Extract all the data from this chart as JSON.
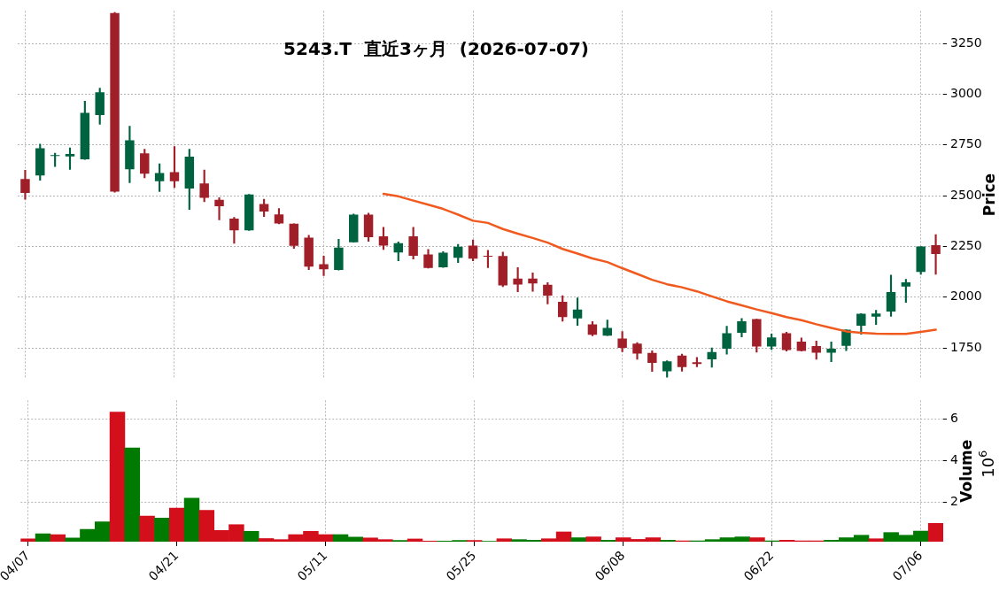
{
  "chart_data": [
    {
      "type": "candlestick",
      "title": "5243.T  直近3ヶ月  (2026-07-07)",
      "ylabel": "Price",
      "tick_labels": "y",
      "grid": true,
      "marker": "none",
      "categories": [
        null,
        null,
        null,
        null,
        null,
        null,
        null,
        null,
        null,
        null,
        null,
        null,
        null,
        null,
        null,
        null,
        null,
        null,
        null,
        null,
        null,
        null,
        null,
        null,
        null,
        null,
        null,
        null,
        null,
        null,
        null,
        null,
        null,
        null,
        null,
        null,
        null,
        null,
        null,
        null,
        null,
        null,
        null,
        null,
        null,
        null,
        null,
        null,
        null,
        null,
        null,
        null,
        null,
        null,
        null,
        null,
        null,
        null,
        null,
        null,
        null,
        null
      ],
      "ylim": [
        1600,
        3410
      ],
      "yticks": [
        1750,
        2000,
        2250,
        2500,
        2750,
        3000,
        3250
      ],
      "ohlc": [
        [
          2582,
          2626,
          2482,
          2514
        ],
        [
          2600,
          2754,
          2576,
          2734
        ],
        [
          2696,
          2710,
          2644,
          2700
        ],
        [
          2694,
          2736,
          2630,
          2705
        ],
        [
          2679,
          2966,
          2679,
          2908
        ],
        [
          2897,
          3030,
          2852,
          3010
        ],
        [
          3400,
          3403,
          2517,
          2520
        ],
        [
          2630,
          2843,
          2564,
          2773
        ],
        [
          2709,
          2729,
          2588,
          2609
        ],
        [
          2571,
          2657,
          2521,
          2612
        ],
        [
          2616,
          2742,
          2540,
          2571
        ],
        [
          2535,
          2729,
          2432,
          2692
        ],
        [
          2561,
          2627,
          2470,
          2490
        ],
        [
          2480,
          2490,
          2381,
          2448
        ],
        [
          2387,
          2394,
          2266,
          2329
        ],
        [
          2329,
          2507,
          2329,
          2506
        ],
        [
          2459,
          2483,
          2398,
          2422
        ],
        [
          2408,
          2437,
          2362,
          2363
        ],
        [
          2362,
          2362,
          2240,
          2253
        ],
        [
          2294,
          2305,
          2136,
          2151
        ],
        [
          2163,
          2203,
          2107,
          2138
        ],
        [
          2134,
          2286,
          2134,
          2245
        ],
        [
          2271,
          2410,
          2271,
          2407
        ],
        [
          2407,
          2414,
          2275,
          2296
        ],
        [
          2300,
          2344,
          2235,
          2254
        ],
        [
          2221,
          2273,
          2180,
          2266
        ],
        [
          2300,
          2344,
          2188,
          2204
        ],
        [
          2211,
          2235,
          2144,
          2144
        ],
        [
          2147,
          2225,
          2147,
          2220
        ],
        [
          2194,
          2261,
          2171,
          2249
        ],
        [
          2254,
          2282,
          2180,
          2190
        ],
        [
          2204,
          2231,
          2146,
          2200
        ],
        [
          2203,
          2222,
          2052,
          2058
        ],
        [
          2092,
          2146,
          2027,
          2063
        ],
        [
          2092,
          2120,
          2029,
          2068
        ],
        [
          2061,
          2072,
          1967,
          2008
        ],
        [
          1977,
          2008,
          1882,
          1902
        ],
        [
          1896,
          1997,
          1861,
          1939
        ],
        [
          1866,
          1880,
          1810,
          1815
        ],
        [
          1811,
          1888,
          1811,
          1849
        ],
        [
          1797,
          1831,
          1732,
          1751
        ],
        [
          1771,
          1777,
          1695,
          1723
        ],
        [
          1726,
          1736,
          1635,
          1677
        ],
        [
          1635,
          1687,
          1606,
          1684
        ],
        [
          1713,
          1720,
          1636,
          1656
        ],
        [
          1680,
          1704,
          1657,
          1671
        ],
        [
          1694,
          1750,
          1655,
          1730
        ],
        [
          1747,
          1857,
          1720,
          1823
        ],
        [
          1825,
          1895,
          1805,
          1882
        ],
        [
          1892,
          1892,
          1729,
          1757
        ],
        [
          1757,
          1819,
          1742,
          1802
        ],
        [
          1823,
          1828,
          1735,
          1740
        ],
        [
          1781,
          1799,
          1735,
          1736
        ],
        [
          1760,
          1784,
          1695,
          1727
        ],
        [
          1727,
          1780,
          1682,
          1747
        ],
        [
          1761,
          1840,
          1737,
          1840
        ],
        [
          1860,
          1919,
          1818,
          1919
        ],
        [
          1905,
          1936,
          1866,
          1920
        ],
        [
          1930,
          2109,
          1906,
          2026
        ],
        [
          2053,
          2088,
          1975,
          2073
        ],
        [
          2125,
          2250,
          2113,
          2250
        ],
        [
          2257,
          2308,
          2113,
          2213
        ]
      ],
      "colors": [
        "#a01f28",
        "#006340",
        "#006340",
        "#006340",
        "#006340",
        "#006340",
        "#a01f28",
        "#006340",
        "#a01f28",
        "#006340",
        "#a01f28",
        "#006340",
        "#a01f28",
        "#a01f28",
        "#a01f28",
        "#006340",
        "#a01f28",
        "#a01f28",
        "#a01f28",
        "#a01f28",
        "#a01f28",
        "#006340",
        "#006340",
        "#a01f28",
        "#a01f28",
        "#006340",
        "#a01f28",
        "#a01f28",
        "#006340",
        "#006340",
        "#a01f28",
        "#a01f28",
        "#a01f28",
        "#a01f28",
        "#a01f28",
        "#a01f28",
        "#a01f28",
        "#006340",
        "#a01f28",
        "#006340",
        "#a01f28",
        "#a01f28",
        "#a01f28",
        "#006340",
        "#a01f28",
        "#a01f28",
        "#006340",
        "#006340",
        "#006340",
        "#a01f28",
        "#006340",
        "#a01f28",
        "#a01f28",
        "#a01f28",
        "#006340",
        "#006340",
        "#006340",
        "#006340",
        "#006340",
        "#006340",
        "#006340",
        "#a01f28"
      ],
      "series": [
        {
          "type": "line",
          "color": "#f15a1e",
          "values": [
            null,
            null,
            null,
            null,
            null,
            null,
            null,
            null,
            null,
            null,
            null,
            null,
            null,
            null,
            null,
            null,
            null,
            null,
            null,
            null,
            null,
            null,
            null,
            null,
            2509,
            2497,
            2476,
            2456,
            2435,
            2407,
            2377,
            2366,
            2336,
            2313,
            2292,
            2269,
            2238,
            2215,
            2191,
            2173,
            2143,
            2115,
            2086,
            2064,
            2049,
            2029,
            2004,
            1980,
            1960,
            1940,
            1922,
            1902,
            1887,
            1867,
            1849,
            1832,
            1825,
            1821,
            1819,
            1819,
            1829,
            1840
          ]
        }
      ]
    },
    {
      "type": "bar",
      "ylabel": "Volume",
      "annotations": [
        "10$^{6}$"
      ],
      "grid": true,
      "categories": [
        "04/07",
        null,
        null,
        null,
        null,
        null,
        null,
        null,
        null,
        null,
        "04/21",
        null,
        null,
        null,
        null,
        null,
        null,
        null,
        null,
        null,
        "05/11",
        null,
        null,
        null,
        null,
        null,
        null,
        null,
        null,
        null,
        "05/25",
        null,
        null,
        null,
        null,
        null,
        null,
        null,
        null,
        null,
        "06/08",
        null,
        null,
        null,
        null,
        null,
        null,
        null,
        null,
        null,
        "06/22",
        null,
        null,
        null,
        null,
        null,
        null,
        null,
        null,
        null,
        "07/06",
        null
      ],
      "ylim": [
        0.1,
        6.9
      ],
      "yticks": [
        2,
        4,
        6
      ],
      "values": [
        0.23,
        0.48,
        0.44,
        0.28,
        0.69,
        1.05,
        6.34,
        4.61,
        1.33,
        1.24,
        1.72,
        2.2,
        1.61,
        0.64,
        0.92,
        0.6,
        0.25,
        0.2,
        0.44,
        0.6,
        0.44,
        0.44,
        0.32,
        0.28,
        0.2,
        0.16,
        0.23,
        0.13,
        0.13,
        0.16,
        0.16,
        0.12,
        0.24,
        0.2,
        0.17,
        0.24,
        0.57,
        0.29,
        0.33,
        0.17,
        0.29,
        0.21,
        0.29,
        0.17,
        0.14,
        0.14,
        0.2,
        0.29,
        0.33,
        0.29,
        0.14,
        0.17,
        0.14,
        0.14,
        0.17,
        0.29,
        0.41,
        0.24,
        0.54,
        0.41,
        0.61,
        0.98
      ],
      "colors": [
        "#d40f1c",
        "#007a00",
        "#d40f1c",
        "#007a00",
        "#007a00",
        "#007a00",
        "#d40f1c",
        "#007a00",
        "#d40f1c",
        "#007a00",
        "#d40f1c",
        "#007a00",
        "#d40f1c",
        "#d40f1c",
        "#d40f1c",
        "#007a00",
        "#d40f1c",
        "#d40f1c",
        "#d40f1c",
        "#d40f1c",
        "#d40f1c",
        "#007a00",
        "#007a00",
        "#d40f1c",
        "#d40f1c",
        "#007a00",
        "#d40f1c",
        "#d40f1c",
        "#007a00",
        "#007a00",
        "#d40f1c",
        "#007a00",
        "#d40f1c",
        "#007a00",
        "#007a00",
        "#d40f1c",
        "#d40f1c",
        "#007a00",
        "#d40f1c",
        "#007a00",
        "#d40f1c",
        "#d40f1c",
        "#d40f1c",
        "#007a00",
        "#d40f1c",
        "#007a00",
        "#007a00",
        "#007a00",
        "#007a00",
        "#d40f1c",
        "#007a00",
        "#d40f1c",
        "#d40f1c",
        "#d40f1c",
        "#007a00",
        "#007a00",
        "#007a00",
        "#d40f1c",
        "#007a00",
        "#007a00",
        "#007a00",
        "#d40f1c"
      ]
    }
  ]
}
